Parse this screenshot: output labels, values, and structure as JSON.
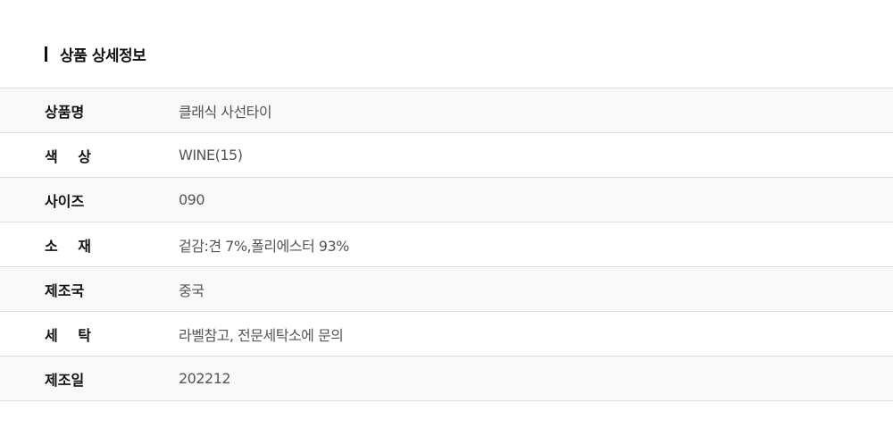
{
  "section_title": "상품 상세정보",
  "rows": [
    {
      "label": "상품명",
      "value": "클래식 사선타이"
    },
    {
      "label": "색 상",
      "value": "WINE(15)"
    },
    {
      "label": "사이즈",
      "value": "090"
    },
    {
      "label": "소 재",
      "value": "겉감:견 7%,폴리에스터 93%"
    },
    {
      "label": "제조국",
      "value": "중국"
    },
    {
      "label": "세 탁",
      "value": "라벨참고, 전문세탁소에 문의"
    },
    {
      "label": "제조일",
      "value": "202212"
    }
  ]
}
